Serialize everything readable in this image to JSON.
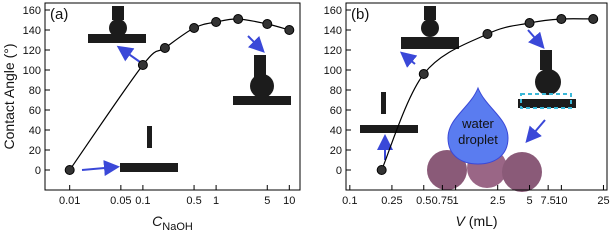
{
  "chart_data": [
    {
      "type": "line",
      "panel_label": "(a)",
      "ylabel": "Contact Angle (°)",
      "xlabel": "C",
      "xlabel_sub": "NaOH",
      "x": [
        0.01,
        0.1,
        0.2,
        0.5,
        1,
        2,
        5,
        10
      ],
      "series": [
        {
          "color": "#000000",
          "values": [
            0,
            105,
            122,
            142,
            148,
            151,
            146,
            140
          ]
        }
      ],
      "xlog": true,
      "xlim": [
        0.0046,
        14
      ],
      "xticks": [
        0.01,
        0.05,
        0.1,
        0.5,
        1,
        5,
        10
      ],
      "ylim": [
        -20,
        167
      ],
      "yticks": [
        0,
        20,
        40,
        60,
        80,
        100,
        120,
        140,
        160
      ]
    },
    {
      "type": "line",
      "panel_label": "(b)",
      "xlabel": "V",
      "xlabel_suffix": "(mL)",
      "x": [
        0.2,
        0.5,
        2,
        5,
        10,
        20
      ],
      "series": [
        {
          "color": "#000000",
          "values": [
            0,
            96,
            136,
            147,
            151,
            151
          ]
        }
      ],
      "xlog": true,
      "xlim": [
        0.092,
        27
      ],
      "xticks": [
        0.1,
        0.25,
        0.5,
        0.75,
        1,
        2.5,
        5,
        7.5,
        10,
        25
      ],
      "ylim": [
        -20,
        167
      ],
      "yticks": [
        0,
        20,
        40,
        60,
        80,
        100,
        120,
        140,
        160
      ],
      "annotations": [
        "water",
        "droplet"
      ]
    }
  ]
}
